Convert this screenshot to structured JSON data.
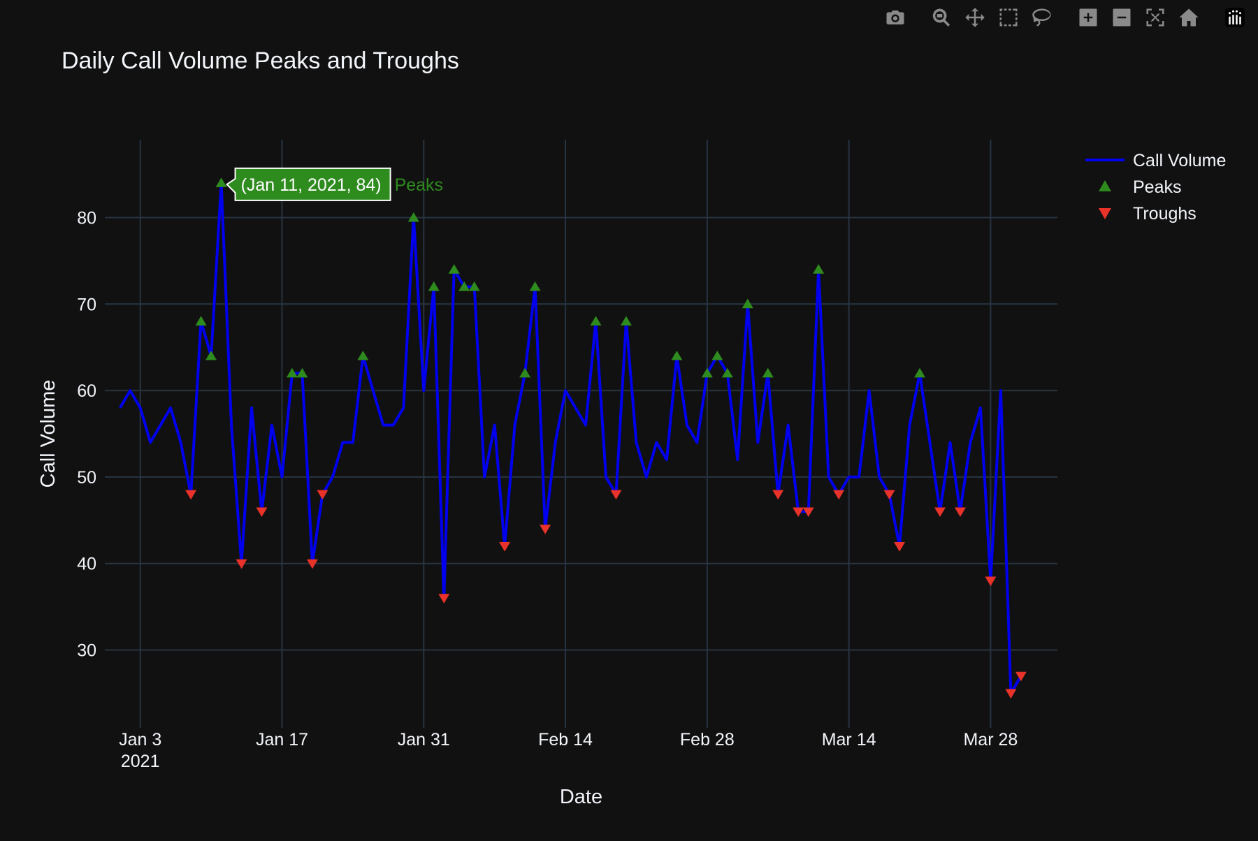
{
  "modebar": {
    "buttons": [
      {
        "name": "camera-icon",
        "title": "Download plot as a png"
      },
      {
        "name": "zoom-icon",
        "title": "Zoom"
      },
      {
        "name": "pan-icon",
        "title": "Pan"
      },
      {
        "name": "box-select-icon",
        "title": "Box Select"
      },
      {
        "name": "lasso-select-icon",
        "title": "Lasso Select"
      },
      {
        "name": "zoom-in-icon",
        "title": "Zoom in"
      },
      {
        "name": "zoom-out-icon",
        "title": "Zoom out"
      },
      {
        "name": "autoscale-icon",
        "title": "Autoscale"
      },
      {
        "name": "reset-axes-icon",
        "title": "Reset axes"
      },
      {
        "name": "plotly-logo-icon",
        "title": "Produced with Plotly"
      }
    ]
  },
  "chart_data": {
    "type": "line",
    "title": "Daily Call Volume Peaks and Troughs",
    "xlabel": "Date",
    "ylabel": "Call Volume",
    "start_date": "2021-01-01",
    "xlim_days": [
      -1.5,
      92.6
    ],
    "ylim": [
      21,
      89
    ],
    "x_ticks": [
      {
        "day": 2,
        "label": "Jan 3",
        "sublabel": "2021"
      },
      {
        "day": 16,
        "label": "Jan 17"
      },
      {
        "day": 30,
        "label": "Jan 31"
      },
      {
        "day": 44,
        "label": "Feb 14"
      },
      {
        "day": 58,
        "label": "Feb 28"
      },
      {
        "day": 72,
        "label": "Mar 14"
      },
      {
        "day": 86,
        "label": "Mar 28"
      }
    ],
    "y_ticks": [
      30,
      40,
      50,
      60,
      70,
      80
    ],
    "grid": true,
    "legend_position": "top-right",
    "series": [
      {
        "name": "Call Volume",
        "mode": "lines",
        "color": "#0000ee",
        "values": [
          58,
          60,
          58,
          54,
          56,
          58,
          54,
          48,
          68,
          64,
          84,
          56,
          40,
          58,
          46,
          56,
          50,
          62,
          62,
          40,
          48,
          50,
          54,
          54,
          64,
          60,
          56,
          56,
          58,
          80,
          60,
          72,
          36,
          74,
          72,
          72,
          50,
          56,
          42,
          56,
          62,
          72,
          44,
          54,
          60,
          58,
          56,
          68,
          50,
          48,
          68,
          54,
          50,
          54,
          52,
          64,
          56,
          54,
          62,
          64,
          62,
          52,
          70,
          54,
          62,
          48,
          56,
          46,
          46,
          74,
          50,
          48,
          50,
          50,
          60,
          50,
          48,
          42,
          56,
          62,
          54,
          46,
          54,
          46,
          54,
          58,
          38,
          60,
          25,
          27
        ]
      },
      {
        "name": "Peaks",
        "mode": "markers",
        "marker": "triangle-up",
        "color": "#2e8b1e",
        "points": [
          [
            8,
            68
          ],
          [
            9,
            64
          ],
          [
            10,
            84
          ],
          [
            17,
            62
          ],
          [
            18,
            62
          ],
          [
            24,
            64
          ],
          [
            29,
            80
          ],
          [
            31,
            72
          ],
          [
            33,
            74
          ],
          [
            34,
            72
          ],
          [
            35,
            72
          ],
          [
            40,
            62
          ],
          [
            41,
            72
          ],
          [
            47,
            68
          ],
          [
            50,
            68
          ],
          [
            55,
            64
          ],
          [
            58,
            62
          ],
          [
            59,
            64
          ],
          [
            60,
            62
          ],
          [
            62,
            70
          ],
          [
            64,
            62
          ],
          [
            69,
            74
          ],
          [
            79,
            62
          ]
        ]
      },
      {
        "name": "Troughs",
        "mode": "markers",
        "marker": "triangle-down",
        "color": "#e8322a",
        "points": [
          [
            7,
            48
          ],
          [
            12,
            40
          ],
          [
            14,
            46
          ],
          [
            19,
            40
          ],
          [
            20,
            48
          ],
          [
            32,
            36
          ],
          [
            38,
            42
          ],
          [
            42,
            44
          ],
          [
            49,
            48
          ],
          [
            65,
            48
          ],
          [
            67,
            46
          ],
          [
            68,
            46
          ],
          [
            71,
            48
          ],
          [
            76,
            48
          ],
          [
            77,
            42
          ],
          [
            81,
            46
          ],
          [
            83,
            46
          ],
          [
            86,
            38
          ],
          [
            88,
            25
          ],
          [
            89,
            27
          ]
        ]
      }
    ],
    "hover_label": {
      "text": "(Jan 11, 2021, 84)",
      "series": "Peaks",
      "day": 10,
      "value": 84
    }
  }
}
